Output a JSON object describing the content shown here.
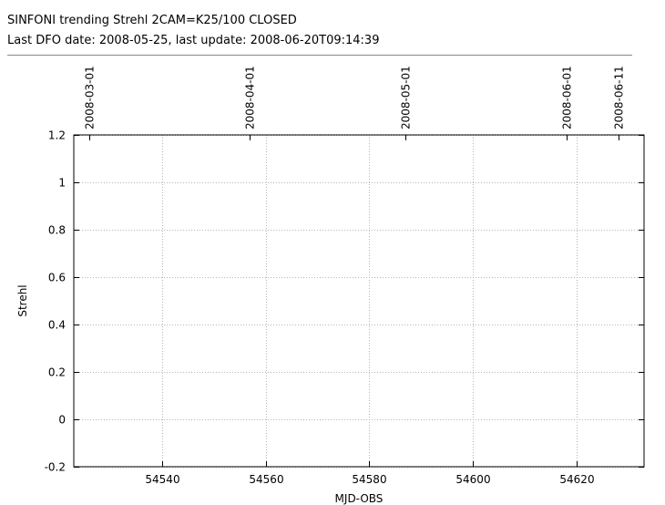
{
  "header": {
    "title": "SINFONI trending Strehl 2CAM=K25/100 CLOSED",
    "subtitle": "Last DFO date: 2008-05-25, last update: 2008-06-20T09:14:39"
  },
  "chart_data": {
    "type": "scatter",
    "title": "",
    "xlabel": "MJD-OBS",
    "ylabel": "Strehl",
    "xlim": [
      54523,
      54633
    ],
    "ylim": [
      -0.2,
      1.2
    ],
    "x_ticks": [
      54540,
      54560,
      54580,
      54600,
      54620
    ],
    "x_tick_labels": [
      "54540",
      "54560",
      "54580",
      "54600",
      "54620"
    ],
    "y_ticks": [
      -0.2,
      0,
      0.2,
      0.4,
      0.6,
      0.8,
      1,
      1.2
    ],
    "y_tick_labels": [
      "-0.2",
      "0",
      "0.2",
      "0.4",
      "0.6",
      "0.8",
      "1",
      "1.2"
    ],
    "top_axis": {
      "mjd": [
        54526,
        54557,
        54587,
        54618,
        54628
      ],
      "labels": [
        "2008-03-01",
        "2008-04-01",
        "2008-05-01",
        "2008-06-01",
        "2008-06-11"
      ]
    },
    "grid": true,
    "series": []
  }
}
